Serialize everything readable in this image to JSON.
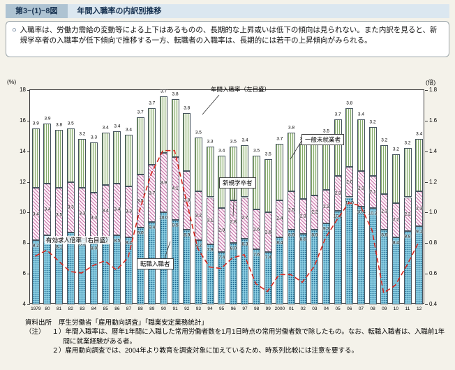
{
  "header": {
    "figure_no": "第3−(1)−8図",
    "title": "年間入職率の内訳別推移"
  },
  "summary": {
    "bullet": "○",
    "text": "入職率は、労働力需給の変動等による上下はあるものの、長期的な上昇或いは低下の傾向は見られない。また内訳を見ると、新規学卒者の入職率が低下傾向で推移する一方、転職者の入職率は、長期的には若干の上昇傾向がみられる。"
  },
  "chart_data": {
    "type": "bar",
    "stacked": true,
    "title": "年間入職率の内訳別推移",
    "left_axis": {
      "unit": "(%)",
      "min": 4,
      "max": 18,
      "ticks": [
        18,
        16,
        14,
        12,
        10,
        8,
        6,
        4
      ]
    },
    "right_axis": {
      "unit": "(倍)",
      "min": 0.4,
      "max": 1.8,
      "ticks": [
        1.8,
        1.6,
        1.4,
        1.2,
        1.0,
        0.8,
        0.6,
        0.4
      ]
    },
    "categories": [
      "1979",
      "80",
      "81",
      "82",
      "83",
      "84",
      "85",
      "86",
      "87",
      "88",
      "89",
      "90",
      "91",
      "92",
      "93",
      "94",
      "95",
      "96",
      "97",
      "98",
      "99",
      "2000",
      "01",
      "02",
      "03",
      "04",
      "05",
      "06",
      "07",
      "08",
      "09",
      "10",
      "11",
      "12"
    ],
    "series": [
      {
        "name": "転職入職者",
        "type": "bar-segment",
        "axis": "left",
        "values": [
          8.2,
          8.5,
          8.1,
          8.7,
          8.3,
          8.0,
          8.4,
          8.5,
          8.4,
          9.0,
          9.4,
          10.0,
          9.5,
          8.9,
          8.2,
          7.9,
          7.4,
          8.0,
          8.3,
          7.6,
          7.4,
          8.4,
          8.9,
          8.6,
          8.9,
          9.3,
          10.1,
          11.0,
          10.4,
          10.3,
          8.9,
          8.4,
          8.8,
          9.1
        ]
      },
      {
        "name": "新規学卒者",
        "type": "bar-segment",
        "axis": "left",
        "values": [
          3.4,
          3.4,
          3.5,
          3.3,
          3.3,
          3.3,
          3.4,
          3.4,
          3.3,
          3.5,
          3.7,
          3.9,
          4.1,
          3.8,
          3.2,
          3.1,
          2.9,
          2.8,
          2.7,
          2.6,
          2.6,
          2.4,
          2.5,
          2.3,
          2.2,
          2.2,
          2.3,
          2.0,
          2.3,
          2.1,
          2.3,
          2.2,
          2.2,
          2.3
        ]
      },
      {
        "name": "一般未就業者",
        "type": "bar-segment",
        "axis": "left",
        "values": [
          3.9,
          3.9,
          3.8,
          3.5,
          3.2,
          3.3,
          3.4,
          3.4,
          3.4,
          3.7,
          3.7,
          3.7,
          3.8,
          3.8,
          3.5,
          3.3,
          3.4,
          3.5,
          3.4,
          3.5,
          3.5,
          3.7,
          3.8,
          3.6,
          3.5,
          3.5,
          3.7,
          3.8,
          3.4,
          3.2,
          3.2,
          3.2,
          3.2,
          3.4
        ]
      },
      {
        "name": "有効求人倍率（右目盛）",
        "type": "line",
        "axis": "right",
        "style": "dashed",
        "values": [
          0.71,
          0.75,
          0.68,
          0.61,
          0.6,
          0.65,
          0.68,
          0.62,
          0.7,
          1.01,
          1.25,
          1.4,
          1.4,
          1.08,
          0.76,
          0.64,
          0.63,
          0.7,
          0.72,
          0.53,
          0.48,
          0.59,
          0.59,
          0.54,
          0.64,
          0.83,
          0.95,
          1.06,
          1.04,
          0.88,
          0.47,
          0.52,
          0.65,
          0.8
        ]
      }
    ],
    "annotations": {
      "total": "年間入職率（左目盛）"
    },
    "colors": {
      "tenshoku": "#8ccfe3",
      "shinki": "#fceff7",
      "ippan": "#eff5e8",
      "ratio_line": "#d8281e"
    }
  },
  "footer": {
    "source_label": "資料出所",
    "source_text": "厚生労働省「雇用動向調査」「職業安定業務統計」",
    "note_label": "（注）",
    "notes": [
      "１）年間入職率は、暦年1年間に入職した常用労働者数を1月1日時点の常用労働者数で除したもの。なお、転職入職者は、入職前1年間に就業経験がある者。",
      "２）雇用動向調査では、2004年より教育を調査対象に加えているため、時系列比較には注意を要する。"
    ]
  }
}
